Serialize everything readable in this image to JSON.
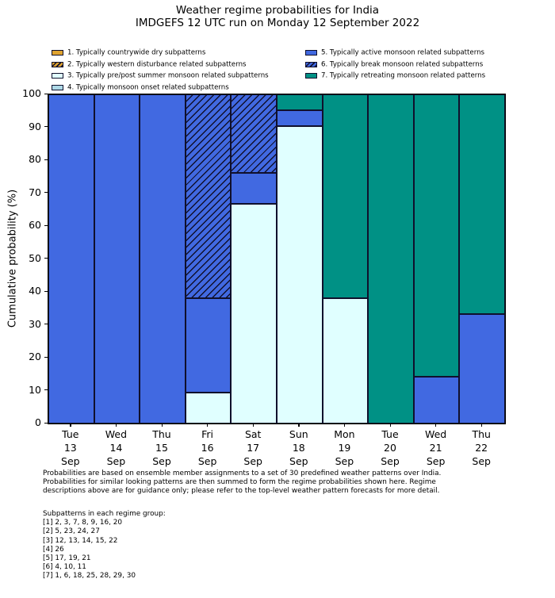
{
  "title": "Weather regime probabilities for India",
  "subtitle": "IMDGEFS 12 UTC run on Monday 12 September 2022",
  "colors": {
    "regime1": "#dfa32f",
    "regime2": "#dfa32f",
    "regime3": "#e0ffff",
    "regime4": "#add8e6",
    "regime5": "#4169e1",
    "regime6": "#4169e1",
    "regime7": "#009185",
    "edge": "#10102c",
    "axis": "#000000"
  },
  "legend": {
    "columns": [
      {
        "items": [
          {
            "label": "1. Typically countrywide dry subpatterns",
            "regime": "regime1",
            "hatch": false
          },
          {
            "label": "2. Typically western disturbance related subpatterns",
            "regime": "regime2",
            "hatch": true
          },
          {
            "label": "3. Typically pre/post summer monsoon related subpatterns",
            "regime": "regime3",
            "hatch": false
          },
          {
            "label": "4. Typically monsoon onset related subpatterns",
            "regime": "regime4",
            "hatch": false
          }
        ]
      },
      {
        "items": [
          {
            "label": "5. Typically active monsoon related subpatterns",
            "regime": "regime5",
            "hatch": false
          },
          {
            "label": "6. Typically break monsoon related subpatterns",
            "regime": "regime6",
            "hatch": true
          },
          {
            "label": "7. Typically retreating monsoon related patterns",
            "regime": "regime7",
            "hatch": false
          }
        ]
      }
    ]
  },
  "chart_data": {
    "type": "bar",
    "stacked": true,
    "grid": false,
    "title": "Weather regime probabilities for India",
    "subtitle": "IMDGEFS 12 UTC run on Monday 12 September 2022",
    "xlabel": "",
    "ylabel": "Cumulative probability (%)",
    "ylim": [
      0,
      100
    ],
    "yticks": [
      0,
      10,
      20,
      30,
      40,
      50,
      60,
      70,
      80,
      90,
      100
    ],
    "legend_position": "above plot, two columns",
    "categories": [
      {
        "day": "Tue",
        "date": "13",
        "month": "Sep"
      },
      {
        "day": "Wed",
        "date": "14",
        "month": "Sep"
      },
      {
        "day": "Thu",
        "date": "15",
        "month": "Sep"
      },
      {
        "day": "Fri",
        "date": "16",
        "month": "Sep"
      },
      {
        "day": "Sat",
        "date": "17",
        "month": "Sep"
      },
      {
        "day": "Sun",
        "date": "18",
        "month": "Sep"
      },
      {
        "day": "Mon",
        "date": "19",
        "month": "Sep"
      },
      {
        "day": "Tue",
        "date": "20",
        "month": "Sep"
      },
      {
        "day": "Wed",
        "date": "21",
        "month": "Sep"
      },
      {
        "day": "Thu",
        "date": "22",
        "month": "Sep"
      }
    ],
    "series": [
      {
        "name": "1. Typically countrywide dry subpatterns",
        "regime": "regime1",
        "hatch": false,
        "values": [
          0,
          0,
          0,
          0,
          0,
          0,
          0,
          0,
          0,
          0
        ]
      },
      {
        "name": "2. Typically western disturbance related subpatterns",
        "regime": "regime2",
        "hatch": true,
        "values": [
          0,
          0,
          0,
          0,
          0,
          0,
          0,
          0,
          0,
          0
        ]
      },
      {
        "name": "3. Typically pre/post summer monsoon related subpatterns",
        "regime": "regime3",
        "hatch": false,
        "values": [
          0,
          0,
          0,
          9.52,
          66.67,
          90.48,
          38.1,
          0,
          0,
          0
        ]
      },
      {
        "name": "4. Typically monsoon onset related subpatterns",
        "regime": "regime4",
        "hatch": false,
        "values": [
          0,
          0,
          0,
          0,
          0,
          0,
          0,
          0,
          0,
          0
        ]
      },
      {
        "name": "5. Typically active monsoon related subpatterns",
        "regime": "regime5",
        "hatch": false,
        "values": [
          100,
          100,
          100,
          28.57,
          9.52,
          4.76,
          0,
          0,
          14.29,
          33.33
        ]
      },
      {
        "name": "6. Typically break monsoon related subpatterns",
        "regime": "regime6",
        "hatch": true,
        "values": [
          0,
          0,
          0,
          61.9,
          23.81,
          0,
          0,
          0,
          0,
          0
        ]
      },
      {
        "name": "7. Typically retreating monsoon related patterns",
        "regime": "regime7",
        "hatch": false,
        "values": [
          0,
          0,
          0,
          0,
          0,
          4.76,
          61.9,
          100,
          85.71,
          66.67
        ]
      }
    ]
  },
  "footer": {
    "lines": [
      "Probabilities are based on ensemble member assignments to a set of 30 predefined weather patterns over India.",
      "Probabilities for similar looking patterns are then summed to form the regime probabilities shown here. Regime",
      "descriptions above are for guidance only; please refer to the top-level weather pattern forecasts for more detail."
    ]
  },
  "subpatterns": {
    "heading": "Subpatterns in each regime group:",
    "lines": [
      "[1] 2, 3, 7, 8, 9, 16, 20",
      "[2] 5, 23, 24, 27",
      "[3] 12, 13, 14, 15, 22",
      "[4] 26",
      "[5] 17, 19, 21",
      "[6] 4, 10, 11",
      "[7] 1, 6, 18, 25, 28, 29, 30"
    ]
  }
}
